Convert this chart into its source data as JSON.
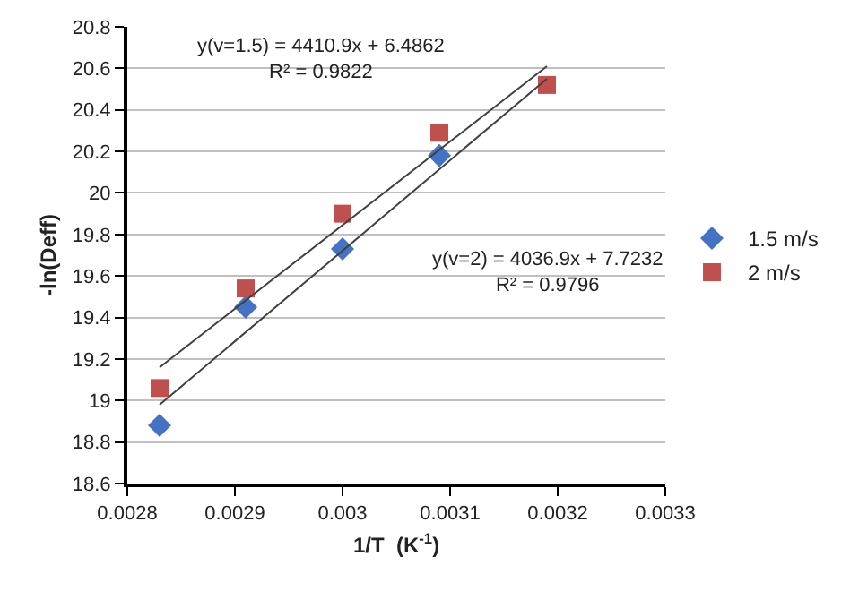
{
  "chart_data": {
    "type": "scatter",
    "xlabel": "1/T  (K$^{-1}$)",
    "ylabel": "-ln(Deff)",
    "x": [
      0.00283,
      0.00291,
      0.003,
      0.00309,
      0.00319
    ],
    "series": [
      {
        "name": "1.5 m/s",
        "color": "#4472c4",
        "marker": "diamond",
        "values": [
          18.88,
          19.45,
          19.73,
          20.18,
          null
        ]
      },
      {
        "name": "2 m/s",
        "color": "#c0504d",
        "marker": "square",
        "values": [
          19.06,
          19.54,
          19.9,
          20.29,
          20.52
        ]
      },
      {
        "type": "line",
        "color": "#404040",
        "marker": "none",
        "values": [
          19.16,
          null,
          null,
          null,
          20.61
        ]
      },
      {
        "type": "line",
        "color": "#404040",
        "marker": "none",
        "values": [
          18.98,
          null,
          null,
          null,
          20.55
        ]
      }
    ],
    "annotations": [
      "y(v=1.5) = 4410.9x + 6.4862\nR² = 0.9822",
      "y(v=2) = 4036.9x + 7.7232\nR² = 0.9796"
    ],
    "xlim": [
      0.0028,
      0.0033
    ],
    "xticks": [
      0.0028,
      0.0029,
      0.003,
      0.0031,
      0.0032,
      0.0033
    ],
    "ylim": [
      18.6,
      20.8
    ],
    "yticks": [
      18.6,
      18.8,
      19,
      19.2,
      19.4,
      19.6,
      19.8,
      20,
      20.2,
      20.4,
      20.6,
      20.8
    ],
    "grid": "y",
    "legend": "right"
  }
}
